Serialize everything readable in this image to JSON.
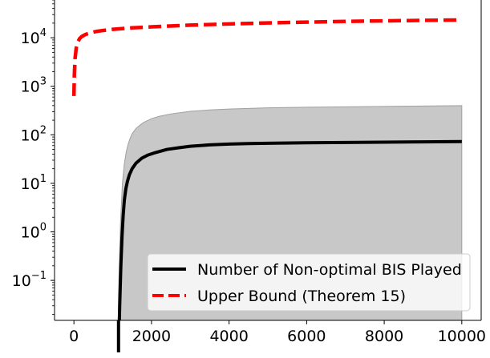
{
  "chart_data": {
    "type": "line",
    "title": "",
    "xlabel": "",
    "ylabel": "",
    "y_scale": "log",
    "xlim": [
      -500,
      10500
    ],
    "ylim": [
      0.015,
      60000
    ],
    "grid": false,
    "legend_position": "lower-right",
    "x_ticks": [
      {
        "value": 0,
        "label": "0"
      },
      {
        "value": 2000,
        "label": "2000"
      },
      {
        "value": 4000,
        "label": "4000"
      },
      {
        "value": 6000,
        "label": "6000"
      },
      {
        "value": 8000,
        "label": "8000"
      },
      {
        "value": 10000,
        "label": "10000"
      }
    ],
    "y_ticks": [
      {
        "value": 0.1,
        "base": "10",
        "exp": "−1"
      },
      {
        "value": 1,
        "base": "10",
        "exp": "0"
      },
      {
        "value": 10,
        "base": "10",
        "exp": "1"
      },
      {
        "value": 100,
        "base": "10",
        "exp": "2"
      },
      {
        "value": 1000,
        "base": "10",
        "exp": "3"
      },
      {
        "value": 10000,
        "base": "10",
        "exp": "4"
      }
    ],
    "series": [
      {
        "name": "Upper Bound (Theorem 15)",
        "style": "dashed",
        "color": "#ff0000",
        "x": [
          0,
          10,
          30,
          60,
          100,
          150,
          200,
          300,
          450,
          600,
          800,
          1000,
          1500,
          2000,
          3000,
          4000,
          5000,
          6000,
          7000,
          8000,
          9000,
          10000
        ],
        "y": [
          630,
          1650,
          3800,
          6200,
          8200,
          9700,
          10600,
          11700,
          12800,
          13600,
          14300,
          14900,
          16000,
          16800,
          18200,
          19300,
          20200,
          21000,
          21700,
          22300,
          22800,
          23300
        ]
      },
      {
        "name": "Number of Non-optimal BIS Played",
        "style": "solid",
        "color": "#000000",
        "x": [
          1150,
          1180,
          1210,
          1240,
          1270,
          1300,
          1340,
          1380,
          1430,
          1500,
          1600,
          1750,
          1900,
          2100,
          2400,
          2700,
          3000,
          3500,
          4000,
          4500,
          5000,
          6000,
          7000,
          8000,
          9000,
          10000
        ],
        "y": [
          0.003,
          0.03,
          0.2,
          0.8,
          2.2,
          4.5,
          7.8,
          11,
          15,
          20,
          26,
          33,
          38,
          43,
          50,
          54,
          58,
          62,
          64.5,
          66,
          67,
          68.5,
          69.5,
          70.5,
          71.5,
          72.5
        ]
      }
    ],
    "shaded_band": {
      "color": "#c8c8c8",
      "x": [
        1150,
        1200,
        1250,
        1300,
        1350,
        1400,
        1450,
        1500,
        1600,
        1700,
        1800,
        2000,
        2200,
        2500,
        3000,
        3500,
        4000,
        5000,
        6000,
        7000,
        8000,
        9000,
        10000
      ],
      "upper": [
        0.05,
        1.5,
        10,
        25,
        45,
        65,
        85,
        105,
        135,
        158,
        180,
        215,
        240,
        270,
        305,
        325,
        340,
        360,
        370,
        378,
        385,
        392,
        400
      ],
      "lower": 0.015
    }
  }
}
